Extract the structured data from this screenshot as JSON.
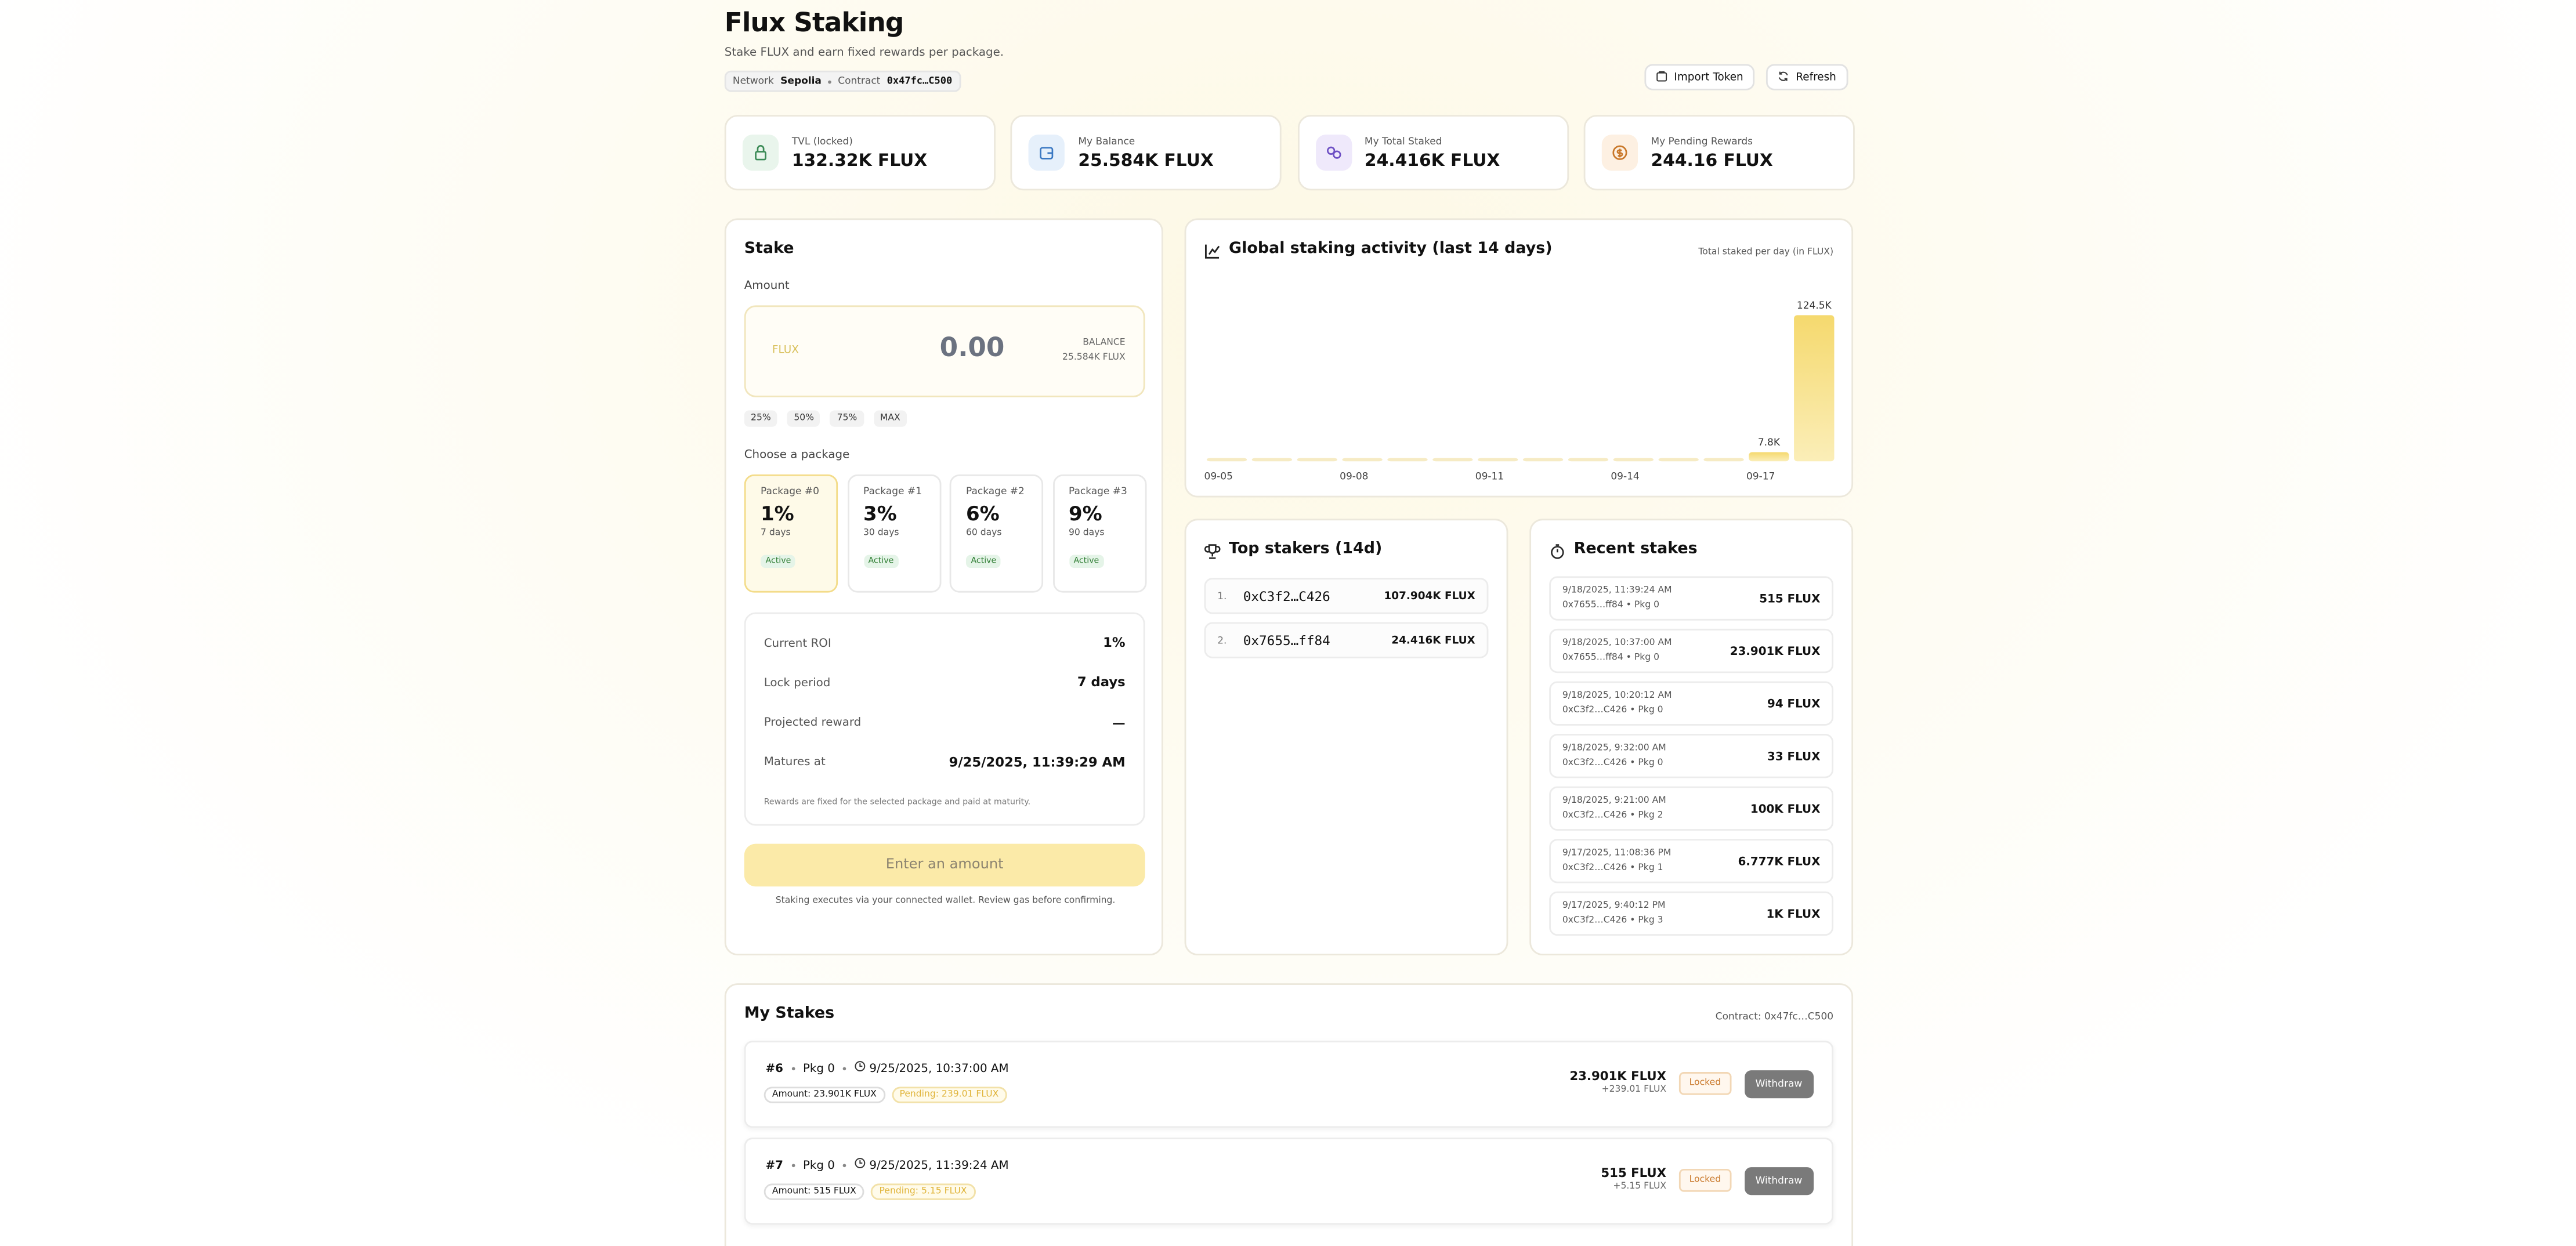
{
  "header": {
    "title": "Flux Staking",
    "subtitle": "Stake FLUX and earn fixed rewards per package.",
    "network_label": "Network",
    "network": "Sepolia",
    "contract_label": "Contract",
    "contract": "0x47fc…C500"
  },
  "actions": [
    "Import Token",
    "Refresh"
  ],
  "stats": [
    {
      "label": "TVL (locked)",
      "value": "132.32K FLUX"
    },
    {
      "label": "My Balance",
      "value": "25.584K FLUX"
    },
    {
      "label": "My Total Staked",
      "value": "24.416K FLUX"
    },
    {
      "label": "My Pending Rewards",
      "value": "244.16 FLUX"
    }
  ],
  "stake": {
    "title": "Stake",
    "amount_label": "Amount",
    "token": "FLUX",
    "amount": "0.00",
    "balance_label": "BALANCE",
    "balance": "25.584K FLUX",
    "quick": [
      "25%",
      "50%",
      "75%",
      "MAX"
    ],
    "package_label": "Choose a package",
    "packages": [
      {
        "name": "Package #0",
        "rate": "1%",
        "duration": "7 days",
        "status": "Active"
      },
      {
        "name": "Package #1",
        "rate": "3%",
        "duration": "30 days",
        "status": "Active"
      },
      {
        "name": "Package #2",
        "rate": "6%",
        "duration": "60 days",
        "status": "Active"
      },
      {
        "name": "Package #3",
        "rate": "9%",
        "duration": "90 days",
        "status": "Active"
      }
    ],
    "summary": [
      {
        "label": "Current ROI",
        "value": "1%"
      },
      {
        "label": "Lock period",
        "value": "7 days"
      },
      {
        "label": "Projected reward",
        "value": "—"
      },
      {
        "label": "Matures at",
        "value": "9/25/2025, 11:39:29 AM"
      }
    ],
    "note": "Rewards are fixed for the selected package and paid at maturity.",
    "button": "Enter an amount",
    "footer": "Staking executes via your connected wallet. Review gas before confirming."
  },
  "chart_data": {
    "type": "bar",
    "title": "Global staking activity (last 14 days)",
    "subtitle": "Total staked per day (in FLUX)",
    "categories": [
      "09-05",
      null,
      null,
      "09-08",
      null,
      null,
      "09-11",
      null,
      null,
      "09-14",
      null,
      null,
      "09-17",
      null
    ],
    "values": [
      0,
      0,
      0,
      0,
      0,
      0,
      0,
      0,
      0,
      0,
      0,
      0,
      7800,
      124500
    ],
    "value_labels": [
      null,
      null,
      null,
      null,
      null,
      null,
      null,
      null,
      null,
      null,
      null,
      null,
      "7.8K",
      "124.5K"
    ],
    "color": "#f5d96e"
  },
  "top_stakers": {
    "title": "Top stakers (14d)",
    "rows": [
      {
        "rank": "1.",
        "address": "0xC3f2…C426",
        "amount": "107.904K FLUX"
      },
      {
        "rank": "2.",
        "address": "0x7655…ff84",
        "amount": "24.416K FLUX"
      }
    ]
  },
  "recent": {
    "title": "Recent stakes",
    "rows": [
      {
        "time": "9/18/2025, 11:39:24 AM",
        "detail": "0x7655…ff84 • Pkg 0",
        "amount": "515 FLUX"
      },
      {
        "time": "9/18/2025, 10:37:00 AM",
        "detail": "0x7655…ff84 • Pkg 0",
        "amount": "23.901K FLUX"
      },
      {
        "time": "9/18/2025, 10:20:12 AM",
        "detail": "0xC3f2…C426 • Pkg 0",
        "amount": "94 FLUX"
      },
      {
        "time": "9/18/2025, 9:32:00 AM",
        "detail": "0xC3f2…C426 • Pkg 0",
        "amount": "33 FLUX"
      },
      {
        "time": "9/18/2025, 9:21:00 AM",
        "detail": "0xC3f2…C426 • Pkg 2",
        "amount": "100K FLUX"
      },
      {
        "time": "9/17/2025, 11:08:36 PM",
        "detail": "0xC3f2…C426 • Pkg 1",
        "amount": "6.777K FLUX"
      },
      {
        "time": "9/17/2025, 9:40:12 PM",
        "detail": "0xC3f2…C426 • Pkg 3",
        "amount": "1K FLUX"
      }
    ]
  },
  "my_stakes": {
    "title": "My Stakes",
    "contract": "Contract: 0x47fc…C500",
    "rows": [
      {
        "id": "#6",
        "pkg": "Pkg 0",
        "date": "9/25/2025, 10:37:00 AM",
        "amount": "Amount: 23.901K FLUX",
        "pending": "Pending: 239.01 FLUX",
        "total": "23.901K FLUX",
        "reward": "+239.01 FLUX",
        "status": "Locked",
        "action": "Withdraw"
      },
      {
        "id": "#7",
        "pkg": "Pkg 0",
        "date": "9/25/2025, 11:39:24 AM",
        "amount": "Amount: 515 FLUX",
        "pending": "Pending: 5.15 FLUX",
        "total": "515 FLUX",
        "reward": "+5.15 FLUX",
        "status": "Locked",
        "action": "Withdraw"
      }
    ]
  }
}
